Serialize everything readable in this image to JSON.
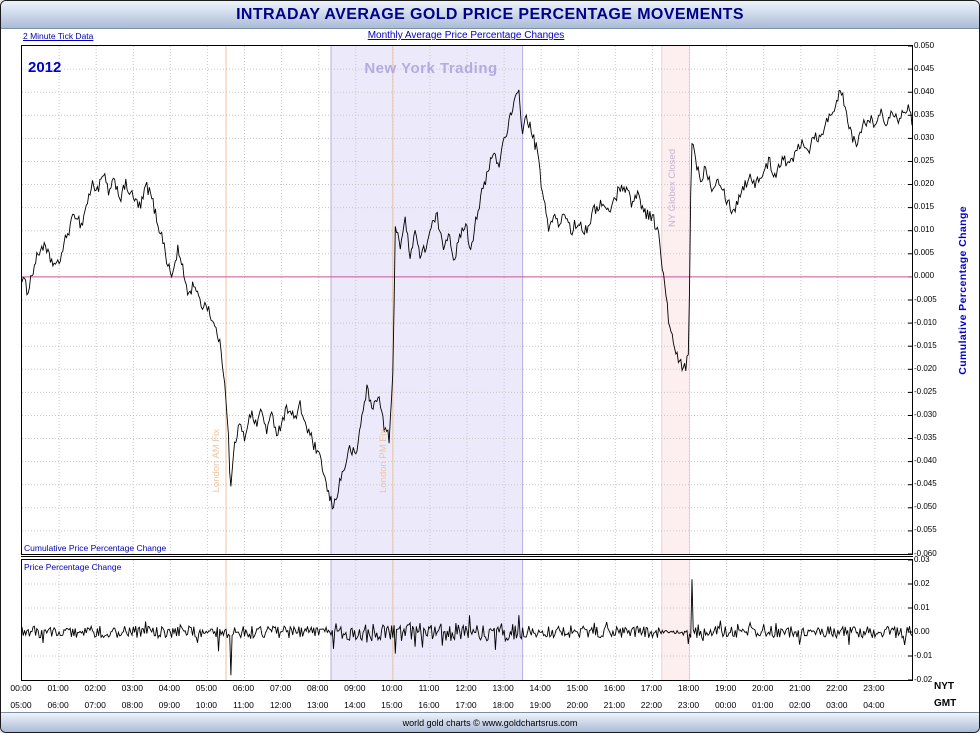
{
  "header": {
    "title": "INTRADAY AVERAGE GOLD PRICE PERCENTAGE MOVEMENTS"
  },
  "subheader": {
    "left": "2 Minute Tick Data",
    "center": "Monthly Average Price Percentage Changes"
  },
  "footer": {
    "text": "world gold charts © www.goldchartsrus.com"
  },
  "colors": {
    "accent_blue": "#0000bb",
    "title_blue": "#00008b",
    "line": "#000000",
    "grid": "#c8c8c8",
    "zero_line": "#cc5599",
    "fix_line": "#f2c39a",
    "fix_text": "#efc49c",
    "band_ny": "#eceafa",
    "band_ny_edge": "#b4aee8",
    "band_globex": "#fdeef0",
    "band_globex_edge": "#f3ced6",
    "watermark": "#b3abe2"
  },
  "chart_data": {
    "type": "line",
    "title": "INTRADAY AVERAGE GOLD PRICE PERCENTAGE MOVEMENTS",
    "x_unit": "hours_nyt",
    "x_range": [
      0,
      24
    ],
    "grid": true,
    "axis_row_labels": {
      "nyt": "NYT",
      "gmt": "GMT"
    },
    "x_ticks_nyt": [
      "00:00",
      "01:00",
      "02:00",
      "03:00",
      "04:00",
      "05:00",
      "06:00",
      "07:00",
      "08:00",
      "09:00",
      "10:00",
      "11:00",
      "12:00",
      "13:00",
      "14:00",
      "15:00",
      "16:00",
      "17:00",
      "18:00",
      "19:00",
      "20:00",
      "21:00",
      "22:00",
      "23:00"
    ],
    "x_ticks_gmt": [
      "05:00",
      "06:00",
      "07:00",
      "08:00",
      "09:00",
      "10:00",
      "11:00",
      "12:00",
      "13:00",
      "14:00",
      "15:00",
      "16:00",
      "17:00",
      "18:00",
      "19:00",
      "20:00",
      "21:00",
      "22:00",
      "23:00",
      "00:00",
      "01:00",
      "02:00",
      "03:00",
      "04:00"
    ],
    "annotations": {
      "year": "2012",
      "watermark": "New York Trading",
      "zero_line": 0,
      "vlines": [
        {
          "label": "London AM Fix",
          "x": 5.5
        },
        {
          "label": "London PM Fix",
          "x": 10.0
        }
      ],
      "bands": [
        {
          "label": "",
          "type": "ny",
          "from": 8.333,
          "to": 13.5
        },
        {
          "label": "NY Globex Closed",
          "type": "globex",
          "from": 17.25,
          "to": 18.0
        }
      ]
    },
    "panels": [
      {
        "name": "cumulative",
        "label": "Cumulative Price Percentage Change",
        "ylabel": "Cumulative Percentage Change",
        "ylim": [
          -0.06,
          0.05
        ],
        "ytick_step": 0.005,
        "ytick_decimals": 3,
        "noise_amplitude": 0.0013,
        "keypoints": [
          [
            0,
            0.0
          ],
          [
            0.15,
            -0.003
          ],
          [
            0.35,
            0.003
          ],
          [
            0.55,
            0.007
          ],
          [
            0.75,
            0.004
          ],
          [
            0.95,
            0.002
          ],
          [
            1.1,
            0.006
          ],
          [
            1.25,
            0.01
          ],
          [
            1.45,
            0.014
          ],
          [
            1.6,
            0.011
          ],
          [
            1.75,
            0.016
          ],
          [
            1.9,
            0.02
          ],
          [
            2.05,
            0.019
          ],
          [
            2.2,
            0.022
          ],
          [
            2.35,
            0.018
          ],
          [
            2.5,
            0.021
          ],
          [
            2.65,
            0.017
          ],
          [
            2.8,
            0.02
          ],
          [
            3.0,
            0.017
          ],
          [
            3.2,
            0.015
          ],
          [
            3.35,
            0.02
          ],
          [
            3.5,
            0.017
          ],
          [
            3.65,
            0.012
          ],
          [
            3.8,
            0.008
          ],
          [
            3.95,
            0.002
          ],
          [
            4.05,
            0.0
          ],
          [
            4.2,
            0.006
          ],
          [
            4.35,
            0.001
          ],
          [
            4.5,
            -0.004
          ],
          [
            4.65,
            -0.001
          ],
          [
            4.8,
            -0.006
          ],
          [
            5.0,
            -0.006
          ],
          [
            5.15,
            -0.01
          ],
          [
            5.3,
            -0.013
          ],
          [
            5.45,
            -0.021
          ],
          [
            5.55,
            -0.031
          ],
          [
            5.62,
            -0.047
          ],
          [
            5.72,
            -0.037
          ],
          [
            5.85,
            -0.032
          ],
          [
            6.0,
            -0.035
          ],
          [
            6.15,
            -0.029
          ],
          [
            6.3,
            -0.032
          ],
          [
            6.45,
            -0.029
          ],
          [
            6.6,
            -0.033
          ],
          [
            6.75,
            -0.03
          ],
          [
            6.9,
            -0.034
          ],
          [
            7.05,
            -0.03
          ],
          [
            7.2,
            -0.028
          ],
          [
            7.35,
            -0.031
          ],
          [
            7.5,
            -0.028
          ],
          [
            7.65,
            -0.032
          ],
          [
            7.8,
            -0.035
          ],
          [
            7.95,
            -0.038
          ],
          [
            8.1,
            -0.041
          ],
          [
            8.25,
            -0.047
          ],
          [
            8.4,
            -0.05
          ],
          [
            8.55,
            -0.045
          ],
          [
            8.7,
            -0.041
          ],
          [
            8.85,
            -0.037
          ],
          [
            9.0,
            -0.039
          ],
          [
            9.15,
            -0.031
          ],
          [
            9.3,
            -0.024
          ],
          [
            9.45,
            -0.029
          ],
          [
            9.6,
            -0.025
          ],
          [
            9.75,
            -0.032
          ],
          [
            9.9,
            -0.035
          ],
          [
            10.0,
            -0.022
          ],
          [
            10.07,
            0.012
          ],
          [
            10.2,
            0.007
          ],
          [
            10.33,
            0.012
          ],
          [
            10.47,
            0.005
          ],
          [
            10.6,
            0.01
          ],
          [
            10.75,
            0.004
          ],
          [
            10.9,
            0.007
          ],
          [
            11.05,
            0.011
          ],
          [
            11.2,
            0.013
          ],
          [
            11.35,
            0.006
          ],
          [
            11.5,
            0.01
          ],
          [
            11.65,
            0.004
          ],
          [
            11.8,
            0.008
          ],
          [
            11.95,
            0.012
          ],
          [
            12.1,
            0.006
          ],
          [
            12.25,
            0.013
          ],
          [
            12.4,
            0.018
          ],
          [
            12.55,
            0.022
          ],
          [
            12.7,
            0.027
          ],
          [
            12.85,
            0.024
          ],
          [
            13.0,
            0.03
          ],
          [
            13.15,
            0.034
          ],
          [
            13.3,
            0.038
          ],
          [
            13.4,
            0.04
          ],
          [
            13.5,
            0.031
          ],
          [
            13.6,
            0.035
          ],
          [
            13.75,
            0.031
          ],
          [
            13.9,
            0.027
          ],
          [
            14.05,
            0.017
          ],
          [
            14.2,
            0.011
          ],
          [
            14.35,
            0.013
          ],
          [
            14.5,
            0.011
          ],
          [
            14.65,
            0.014
          ],
          [
            14.8,
            0.01
          ],
          [
            15.0,
            0.012
          ],
          [
            15.2,
            0.01
          ],
          [
            15.4,
            0.014
          ],
          [
            15.6,
            0.016
          ],
          [
            15.8,
            0.014
          ],
          [
            16.0,
            0.017
          ],
          [
            16.15,
            0.02
          ],
          [
            16.3,
            0.019
          ],
          [
            16.45,
            0.016
          ],
          [
            16.6,
            0.018
          ],
          [
            16.8,
            0.014
          ],
          [
            17.0,
            0.013
          ],
          [
            17.15,
            0.01
          ],
          [
            17.3,
            0.0
          ],
          [
            17.45,
            -0.01
          ],
          [
            17.6,
            -0.016
          ],
          [
            17.75,
            -0.019
          ],
          [
            17.9,
            -0.02
          ],
          [
            17.98,
            -0.016
          ],
          [
            18.05,
            0.03
          ],
          [
            18.15,
            0.026
          ],
          [
            18.3,
            0.021
          ],
          [
            18.45,
            0.024
          ],
          [
            18.6,
            0.019
          ],
          [
            18.75,
            0.022
          ],
          [
            18.9,
            0.019
          ],
          [
            19.05,
            0.016
          ],
          [
            19.2,
            0.014
          ],
          [
            19.35,
            0.018
          ],
          [
            19.5,
            0.02
          ],
          [
            19.65,
            0.022
          ],
          [
            19.8,
            0.02
          ],
          [
            20.0,
            0.023
          ],
          [
            20.15,
            0.025
          ],
          [
            20.3,
            0.022
          ],
          [
            20.5,
            0.026
          ],
          [
            20.7,
            0.024
          ],
          [
            20.9,
            0.028
          ],
          [
            21.05,
            0.03
          ],
          [
            21.2,
            0.027
          ],
          [
            21.35,
            0.031
          ],
          [
            21.5,
            0.03
          ],
          [
            21.65,
            0.033
          ],
          [
            21.8,
            0.035
          ],
          [
            21.95,
            0.038
          ],
          [
            22.1,
            0.04
          ],
          [
            22.25,
            0.034
          ],
          [
            22.4,
            0.03
          ],
          [
            22.55,
            0.029
          ],
          [
            22.7,
            0.033
          ],
          [
            22.85,
            0.035
          ],
          [
            23.0,
            0.032
          ],
          [
            23.15,
            0.036
          ],
          [
            23.3,
            0.033
          ],
          [
            23.45,
            0.037
          ],
          [
            23.6,
            0.034
          ],
          [
            23.75,
            0.036
          ],
          [
            23.9,
            0.037
          ],
          [
            24,
            0.033
          ]
        ]
      },
      {
        "name": "tick_change",
        "label": "Price Percentage Change",
        "ylim": [
          -0.02,
          0.03
        ],
        "ytick_step": 0.01,
        "ytick_decimals": 2,
        "base_noise": 0.0025,
        "noise_regions": [
          {
            "from": 8.333,
            "to": 13.5,
            "amp": 0.0038
          },
          {
            "from": 17.25,
            "to": 17.98,
            "amp": 0.0008
          }
        ],
        "spikes": [
          [
            5.3,
            -0.008
          ],
          [
            5.62,
            -0.018
          ],
          [
            8.4,
            -0.007
          ],
          [
            10.07,
            -0.009
          ],
          [
            13.4,
            0.007
          ],
          [
            17.98,
            -0.005
          ],
          [
            18.05,
            0.022
          ]
        ]
      }
    ]
  }
}
